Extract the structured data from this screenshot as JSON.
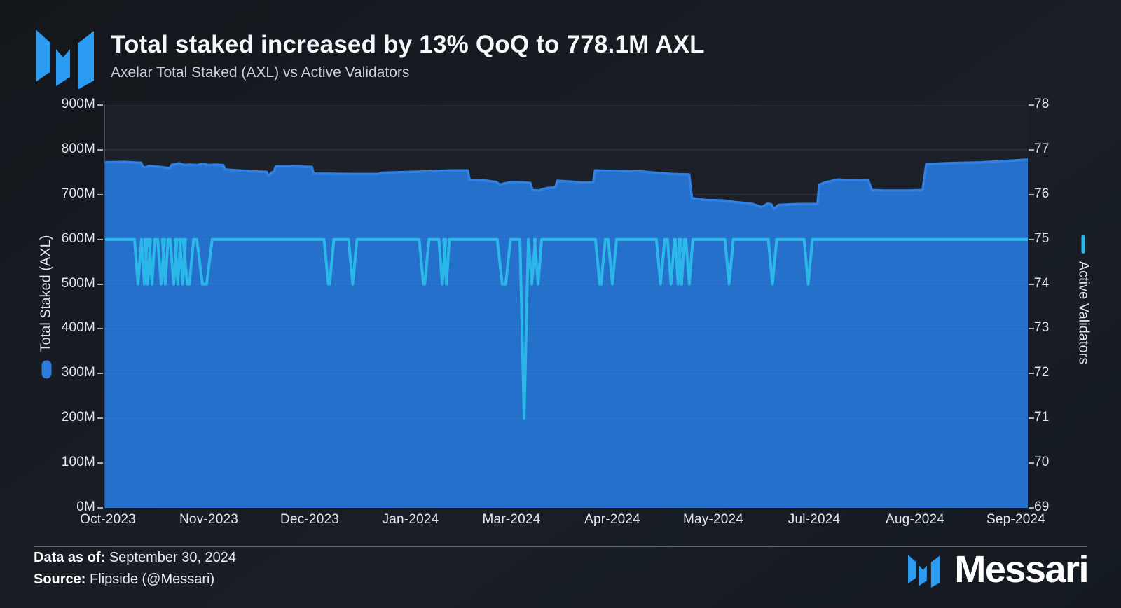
{
  "header": {
    "title": "Total staked increased by 13% QoQ to 778.1M AXL",
    "subtitle": "Axelar Total Staked (AXL) vs Active Validators"
  },
  "footer": {
    "data_as_of_label": "Data as of:",
    "data_as_of_value": "September 30, 2024",
    "source_label": "Source:",
    "source_value": "Flipside (@Messari)",
    "brand_wordmark": "Messari"
  },
  "icons": {
    "logo": "messari-m-mark"
  },
  "colors": {
    "brand_blue": "#2b9cf2",
    "area_fill": "#2470ca",
    "area_stroke": "#3181e4",
    "line_cyan": "#2cb7e9",
    "background": "#161a20",
    "plot_background": "#1c2129",
    "gridline": "rgba(255,255,255,0.07)",
    "tick_text": "#e4e8ec"
  },
  "chart_data": {
    "type": "area+line",
    "title": "Total staked increased by 13% QoQ to 778.1M AXL",
    "subtitle": "Axelar Total Staked (AXL) vs Active Validators",
    "grid": "horizontal",
    "legend_position": "rotated-axis-labels",
    "x_ticks": [
      "Oct-2023",
      "Nov-2023",
      "Dec-2023",
      "Jan-2024",
      "Mar-2024",
      "Apr-2024",
      "May-2024",
      "Jul-2024",
      "Aug-2024",
      "Sep-2024"
    ],
    "y_left": {
      "label": "Total Staked (AXL)",
      "unit": "M AXL",
      "min": 0,
      "max": 900,
      "ticks": [
        "900M",
        "800M",
        "700M",
        "600M",
        "500M",
        "400M",
        "300M",
        "200M",
        "100M",
        "0M"
      ]
    },
    "y_right": {
      "label": "Active Validators",
      "min": 69,
      "max": 78,
      "ticks": [
        "78",
        "77",
        "76",
        "75",
        "74",
        "73",
        "72",
        "71",
        "70",
        "69"
      ]
    },
    "series": [
      {
        "name": "Total Staked (AXL)",
        "type": "area",
        "axis": "left",
        "color": "#2470ca",
        "stroke": "#3181e4",
        "start_value_M": 772,
        "end_value_M": 778.1,
        "points_frac_valueM": [
          [
            0.0,
            772
          ],
          [
            0.02,
            773
          ],
          [
            0.039,
            771
          ],
          [
            0.041,
            762
          ],
          [
            0.044,
            761
          ],
          [
            0.047,
            764
          ],
          [
            0.06,
            762
          ],
          [
            0.07,
            759
          ],
          [
            0.072,
            766
          ],
          [
            0.076,
            768
          ],
          [
            0.08,
            770
          ],
          [
            0.086,
            766
          ],
          [
            0.091,
            767
          ],
          [
            0.1,
            766
          ],
          [
            0.106,
            769
          ],
          [
            0.112,
            766
          ],
          [
            0.12,
            767
          ],
          [
            0.128,
            766
          ],
          [
            0.13,
            756
          ],
          [
            0.146,
            754
          ],
          [
            0.16,
            752
          ],
          [
            0.175,
            751
          ],
          [
            0.177,
            742
          ],
          [
            0.181,
            750
          ],
          [
            0.183,
            751
          ],
          [
            0.185,
            763
          ],
          [
            0.2,
            763
          ],
          [
            0.224,
            762
          ],
          [
            0.226,
            747
          ],
          [
            0.27,
            746
          ],
          [
            0.296,
            746
          ],
          [
            0.3,
            749
          ],
          [
            0.32,
            750
          ],
          [
            0.35,
            752
          ],
          [
            0.373,
            754
          ],
          [
            0.393,
            754
          ],
          [
            0.395,
            733
          ],
          [
            0.41,
            732
          ],
          [
            0.424,
            728
          ],
          [
            0.428,
            722
          ],
          [
            0.433,
            725
          ],
          [
            0.44,
            728
          ],
          [
            0.455,
            727
          ],
          [
            0.461,
            726
          ],
          [
            0.463,
            710
          ],
          [
            0.47,
            709
          ],
          [
            0.474,
            712
          ],
          [
            0.48,
            715
          ],
          [
            0.488,
            716
          ],
          [
            0.49,
            731
          ],
          [
            0.505,
            729
          ],
          [
            0.515,
            727
          ],
          [
            0.529,
            727
          ],
          [
            0.531,
            754
          ],
          [
            0.547,
            753
          ],
          [
            0.58,
            752
          ],
          [
            0.602,
            748
          ],
          [
            0.615,
            746
          ],
          [
            0.633,
            745
          ],
          [
            0.636,
            692
          ],
          [
            0.65,
            688
          ],
          [
            0.67,
            687
          ],
          [
            0.684,
            683
          ],
          [
            0.7,
            680
          ],
          [
            0.712,
            672
          ],
          [
            0.718,
            680
          ],
          [
            0.722,
            678
          ],
          [
            0.725,
            668
          ],
          [
            0.73,
            677
          ],
          [
            0.75,
            679
          ],
          [
            0.772,
            679
          ],
          [
            0.774,
            722
          ],
          [
            0.78,
            727
          ],
          [
            0.795,
            734
          ],
          [
            0.8,
            733
          ],
          [
            0.827,
            732
          ],
          [
            0.831,
            710
          ],
          [
            0.845,
            709
          ],
          [
            0.87,
            709
          ],
          [
            0.886,
            710
          ],
          [
            0.89,
            768
          ],
          [
            0.91,
            770
          ],
          [
            0.93,
            771
          ],
          [
            0.95,
            772
          ],
          [
            0.975,
            775
          ],
          [
            1.0,
            778
          ]
        ]
      },
      {
        "name": "Active Validators",
        "type": "line",
        "axis": "right",
        "color": "#2cb7e9",
        "baseline": 75,
        "min_value": 71,
        "dips_frac_value_halfwidth_flat": [
          [
            0.0356,
            74,
            5,
            0
          ],
          [
            0.0425,
            74,
            4,
            0
          ],
          [
            0.0462,
            74,
            4,
            0
          ],
          [
            0.0508,
            74,
            4,
            0
          ],
          [
            0.0607,
            74,
            5,
            0
          ],
          [
            0.0652,
            74,
            4,
            0
          ],
          [
            0.0743,
            74,
            5,
            0
          ],
          [
            0.0788,
            74,
            4,
            0
          ],
          [
            0.0841,
            74,
            4,
            0
          ],
          [
            0.0902,
            74,
            6,
            3
          ],
          [
            0.1077,
            74,
            8,
            6
          ],
          [
            0.2426,
            74,
            6,
            2
          ],
          [
            0.2684,
            74,
            6,
            0
          ],
          [
            0.3457,
            74,
            6,
            2
          ],
          [
            0.3654,
            74,
            5,
            0
          ],
          [
            0.37,
            74,
            4,
            0
          ],
          [
            0.4322,
            74,
            7,
            5
          ],
          [
            0.4541,
            71,
            6,
            0
          ],
          [
            0.4625,
            74,
            5,
            0
          ],
          [
            0.4693,
            74,
            5,
            0
          ],
          [
            0.5368,
            74,
            6,
            2
          ],
          [
            0.5497,
            74,
            6,
            0
          ],
          [
            0.602,
            74,
            6,
            0
          ],
          [
            0.6133,
            74,
            5,
            0
          ],
          [
            0.6209,
            74,
            4,
            0
          ],
          [
            0.6247,
            74,
            4,
            0
          ],
          [
            0.6331,
            74,
            5,
            0
          ],
          [
            0.6763,
            74,
            6,
            0
          ],
          [
            0.7233,
            74,
            6,
            0
          ],
          [
            0.762,
            74,
            6,
            0
          ]
        ]
      }
    ]
  }
}
